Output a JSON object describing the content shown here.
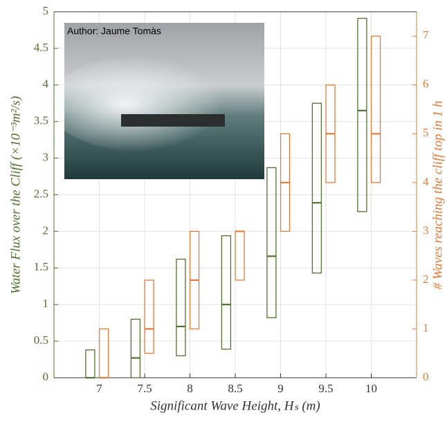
{
  "chart_data": {
    "type": "range",
    "photo_credit": "Author: Jaume Tomàs",
    "xlabel": "Significant Wave Height, Hₛ (m)",
    "ylabel": "Water Flux over the Cliff (×10⁻³m²/s)",
    "y2label": "# Waves reaching the cliff top in 1 h",
    "xlim": [
      6.5,
      10.5
    ],
    "xticks": [
      7,
      7.5,
      8,
      8.5,
      9,
      9.5,
      10
    ],
    "ylim": [
      0,
      5
    ],
    "yticks": [
      0,
      0.5,
      1,
      1.5,
      2,
      2.5,
      3,
      3.5,
      4,
      4.5,
      5
    ],
    "y2lim": [
      0,
      7.5
    ],
    "y2ticks": [
      0,
      1,
      2,
      3,
      4,
      5,
      6,
      7
    ],
    "ycolor": "#51702f",
    "y2color": "#e07b39",
    "grid": true,
    "series": [
      {
        "color": "#51702f",
        "axis": "y",
        "x": [
          6.9,
          7.4,
          7.9,
          8.4,
          8.9,
          9.4,
          9.9
        ],
        "low": [
          0,
          0,
          0.3,
          0.39,
          0.82,
          1.43,
          2.27
        ],
        "high": [
          0.38,
          0.8,
          1.62,
          1.94,
          2.87,
          3.75,
          4.91
        ],
        "median": [
          0,
          0.27,
          0.7,
          1.0,
          1.66,
          2.39,
          3.65
        ]
      },
      {
        "color": "#e07b39",
        "axis": "y2",
        "x": [
          7.05,
          7.55,
          8.05,
          8.55,
          9.05,
          9.55,
          10.05
        ],
        "low": [
          0,
          0.5,
          1,
          2,
          3,
          4,
          4
        ],
        "high": [
          1,
          2,
          3,
          3,
          5,
          6,
          7
        ],
        "median": [
          0,
          1,
          2,
          3,
          4,
          5,
          5
        ]
      }
    ]
  }
}
